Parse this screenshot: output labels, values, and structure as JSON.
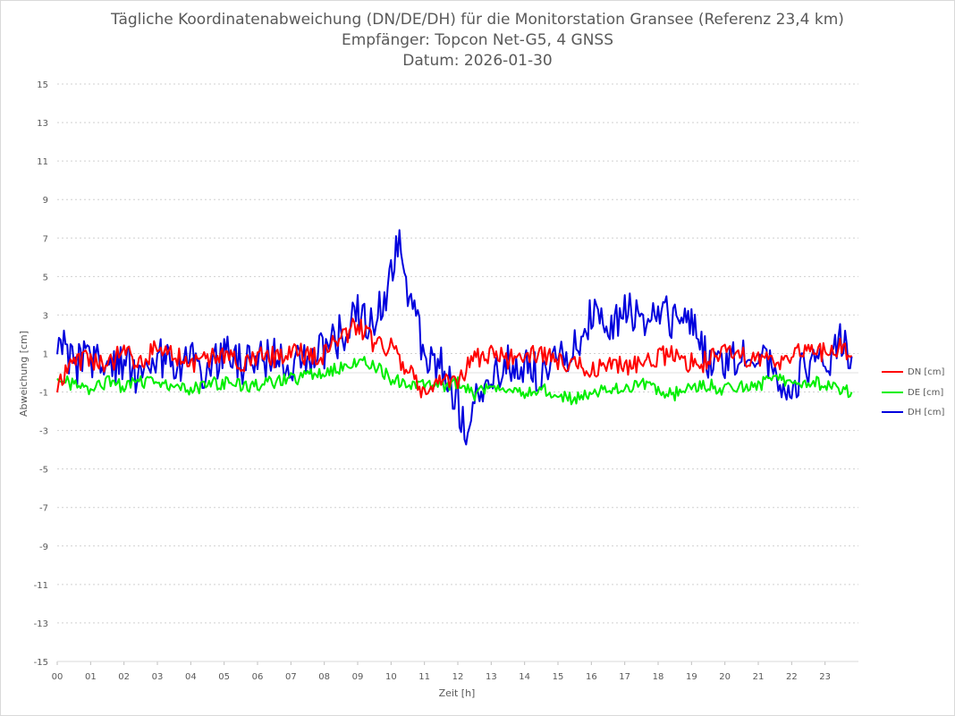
{
  "chart_data": {
    "type": "line",
    "title_lines": [
      "Tägliche Koordinatenabweichung (DN/DE/DH) für die Monitorstation Gransee (Referenz 23,4 km)",
      "Empfänger: Topcon Net-G5, 4 GNSS",
      "Datum: 2026-01-30"
    ],
    "xlabel": "Zeit [h]",
    "ylabel": "Abweichung [cm]",
    "xlim": [
      0,
      24
    ],
    "ylim": [
      -15,
      15
    ],
    "x_ticks": [
      "00",
      "01",
      "02",
      "03",
      "04",
      "05",
      "06",
      "07",
      "08",
      "09",
      "10",
      "11",
      "12",
      "13",
      "14",
      "15",
      "16",
      "17",
      "18",
      "19",
      "20",
      "21",
      "22",
      "23"
    ],
    "y_ticks": [
      "15",
      "13",
      "11",
      "9",
      "7",
      "5",
      "3",
      "1",
      "-1",
      "-3",
      "-5",
      "-7",
      "-9",
      "-11",
      "-13",
      "-15"
    ],
    "grid": "horizontal dotted",
    "legend_position": "right",
    "series": [
      {
        "name": "DN [cm]",
        "color": "#ff0000",
        "x": [
          0,
          0.5,
          1,
          1.5,
          2,
          2.5,
          3,
          3.5,
          4,
          4.5,
          5,
          5.5,
          6,
          6.5,
          7,
          7.5,
          8,
          8.5,
          9,
          9.5,
          10,
          10.5,
          11,
          11.5,
          12,
          12.5,
          13,
          13.5,
          14,
          14.5,
          15,
          15.5,
          16,
          16.5,
          17,
          17.5,
          18,
          18.5,
          19,
          19.5,
          20,
          20.5,
          21,
          21.5,
          22,
          22.5,
          23,
          23.5,
          23.8
        ],
        "values": [
          -0.5,
          0.6,
          0.7,
          0.3,
          1.2,
          0.5,
          1.3,
          0.9,
          0.4,
          0.7,
          0.9,
          0.5,
          0.9,
          0.8,
          1.2,
          0.9,
          1.0,
          1.8,
          2.6,
          1.5,
          1.4,
          0.2,
          -1.0,
          -0.6,
          -0.4,
          0.8,
          1.0,
          0.7,
          1.1,
          0.9,
          0.6,
          0.4,
          0.2,
          0.5,
          0.3,
          0.6,
          0.8,
          0.9,
          0.5,
          0.6,
          1.0,
          0.9,
          0.7,
          0.6,
          0.8,
          1.4,
          1.0,
          1.3,
          0.6
        ]
      },
      {
        "name": "DE [cm]",
        "color": "#00ee00",
        "x": [
          0,
          0.5,
          1,
          1.5,
          2,
          2.5,
          3,
          3.5,
          4,
          4.5,
          5,
          5.5,
          6,
          6.5,
          7,
          7.5,
          8,
          8.5,
          9,
          9.5,
          10,
          10.5,
          11,
          11.5,
          12,
          12.5,
          13,
          13.5,
          14,
          14.5,
          15,
          15.5,
          16,
          16.5,
          17,
          17.5,
          18,
          18.5,
          19,
          19.5,
          20,
          20.5,
          21,
          21.5,
          22,
          22.5,
          23,
          23.5,
          23.8
        ],
        "values": [
          -0.4,
          -0.6,
          -0.8,
          -0.5,
          -0.7,
          -0.5,
          -0.6,
          -0.7,
          -0.9,
          -0.6,
          -0.5,
          -0.7,
          -0.6,
          -0.5,
          -0.3,
          -0.2,
          0.0,
          0.3,
          0.7,
          0.4,
          -0.3,
          -0.5,
          -0.7,
          -0.8,
          -0.5,
          -1.1,
          -0.6,
          -0.7,
          -1.0,
          -0.8,
          -1.2,
          -1.4,
          -1.0,
          -0.9,
          -0.7,
          -0.6,
          -0.9,
          -1.1,
          -0.8,
          -0.6,
          -0.9,
          -0.7,
          -0.6,
          -0.4,
          -0.3,
          -0.5,
          -0.6,
          -1.0,
          -1.0
        ]
      },
      {
        "name": "DH [cm]",
        "color": "#0000dd",
        "x": [
          0,
          0.5,
          1,
          1.5,
          2,
          2.5,
          3,
          3.5,
          4,
          4.5,
          5,
          5.5,
          6,
          6.5,
          7,
          7.5,
          8,
          8.5,
          9,
          9.5,
          10,
          10.25,
          10.5,
          11,
          11.5,
          12,
          12.25,
          12.5,
          13,
          13.5,
          14,
          14.5,
          15,
          15.5,
          16,
          16.5,
          17,
          17.5,
          18,
          18.5,
          19,
          19.5,
          20,
          20.5,
          21,
          21.5,
          22,
          22.5,
          23,
          23.5,
          23.8
        ],
        "values": [
          1.8,
          0.4,
          0.8,
          0.2,
          0.6,
          -0.4,
          0.8,
          0.3,
          0.5,
          0.1,
          0.9,
          0.4,
          0.6,
          0.7,
          0.5,
          0.9,
          1.2,
          2.0,
          3.0,
          2.6,
          4.8,
          7.5,
          4.0,
          1.0,
          0.5,
          -1.6,
          -3.2,
          -1.8,
          -0.6,
          0.4,
          0.1,
          0.0,
          0.6,
          1.4,
          3.0,
          2.0,
          3.4,
          2.6,
          3.3,
          2.8,
          3.1,
          0.5,
          0.4,
          0.8,
          1.2,
          0.0,
          -0.6,
          0.3,
          0.5,
          1.6,
          0.4
        ]
      }
    ]
  }
}
